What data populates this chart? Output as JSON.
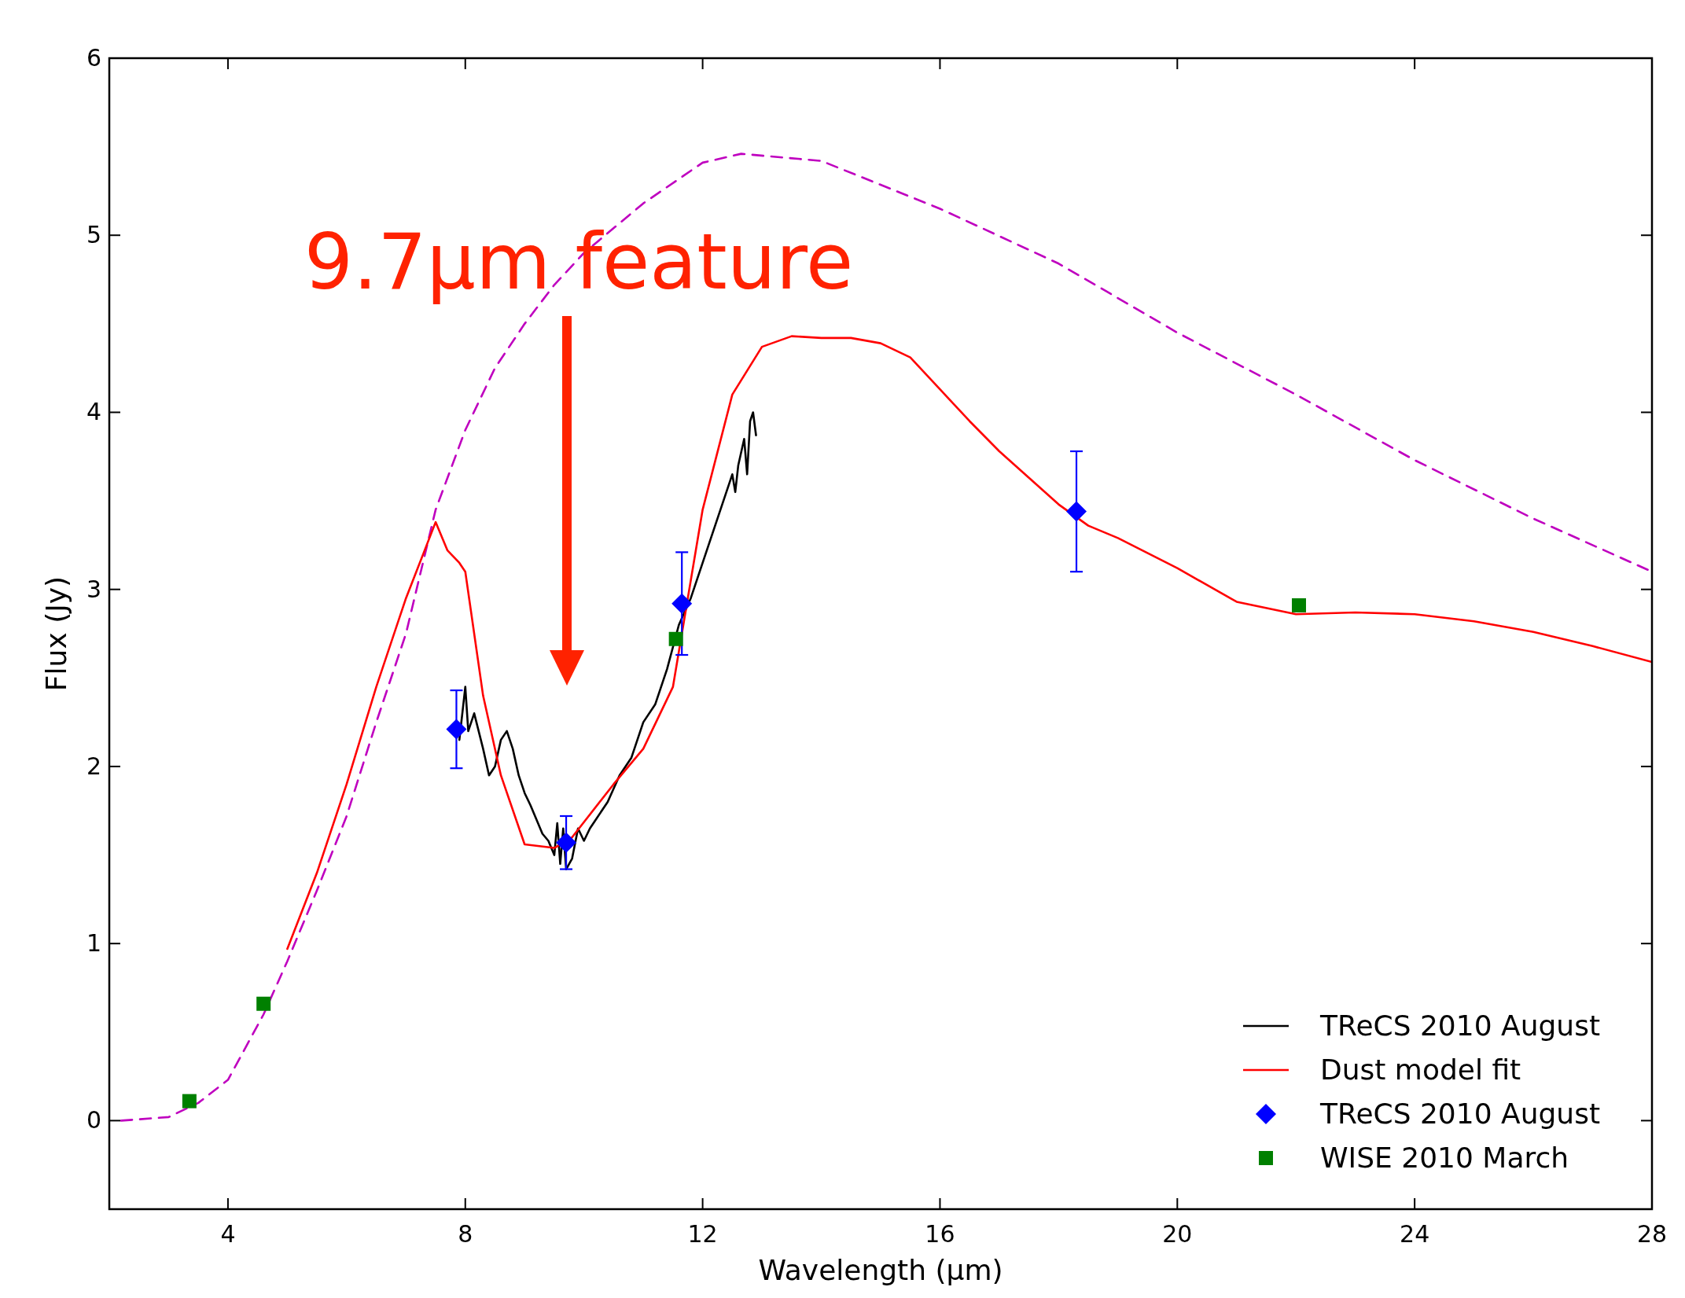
{
  "chart_data": {
    "type": "line",
    "xlabel": "Wavelength (μm)",
    "ylabel": "Flux (Jy)",
    "xlim": [
      2,
      28
    ],
    "ylim": [
      -0.5,
      6
    ],
    "xticks": [
      4,
      8,
      12,
      16,
      20,
      24,
      28
    ],
    "yticks": [
      0,
      1,
      2,
      3,
      4,
      5,
      6
    ],
    "grid": false,
    "legend": "bottom right",
    "annotations": [
      "9.7μm feature"
    ],
    "series": [
      {
        "type": "line",
        "line_style": "dashed",
        "marker": "none",
        "color": "#bf00bf",
        "x": [
          2.2,
          3,
          3.5,
          4,
          4.6,
          5,
          5.5,
          6,
          6.5,
          7,
          7.5,
          8,
          8.5,
          9,
          9.5,
          10,
          11,
          12,
          12.65,
          14,
          16,
          18,
          20,
          22,
          24,
          26,
          28
        ],
        "values": [
          0,
          0.02,
          0.1,
          0.23,
          0.6,
          0.9,
          1.3,
          1.72,
          2.25,
          2.75,
          3.45,
          3.9,
          4.25,
          4.5,
          4.72,
          4.9,
          5.18,
          5.41,
          5.46,
          5.42,
          5.15,
          4.84,
          4.45,
          4.1,
          3.73,
          3.4,
          3.1
        ]
      },
      {
        "type": "line",
        "name": "TReCS 2010 August",
        "line_style": "solid",
        "marker": "none",
        "color": "#000000",
        "x": [
          7.9,
          8.0,
          8.05,
          8.15,
          8.3,
          8.4,
          8.5,
          8.6,
          8.7,
          8.8,
          8.9,
          9.0,
          9.1,
          9.2,
          9.3,
          9.4,
          9.5,
          9.55,
          9.6,
          9.65,
          9.7,
          9.8,
          9.9,
          10.0,
          10.1,
          10.2,
          10.4,
          10.6,
          10.8,
          11.0,
          11.2,
          11.4,
          11.6,
          11.8,
          12.0,
          12.2,
          12.4,
          12.5,
          12.55,
          12.6,
          12.7,
          12.75,
          12.8,
          12.85,
          12.9
        ],
        "values": [
          2.15,
          2.45,
          2.2,
          2.3,
          2.1,
          1.95,
          2.0,
          2.15,
          2.2,
          2.1,
          1.95,
          1.85,
          1.78,
          1.7,
          1.62,
          1.58,
          1.5,
          1.68,
          1.45,
          1.65,
          1.42,
          1.48,
          1.65,
          1.58,
          1.65,
          1.7,
          1.8,
          1.95,
          2.05,
          2.25,
          2.35,
          2.55,
          2.8,
          2.95,
          3.15,
          3.35,
          3.55,
          3.65,
          3.55,
          3.7,
          3.85,
          3.65,
          3.95,
          4.0,
          3.87
        ]
      },
      {
        "type": "line",
        "name": "Dust model fit",
        "line_style": "solid",
        "marker": "none",
        "color": "#ff0000",
        "x": [
          5,
          5.5,
          6,
          6.5,
          7,
          7.5,
          7.7,
          7.9,
          8.0,
          8.3,
          8.6,
          9.0,
          9.5,
          9.8,
          10.5,
          11,
          11.5,
          12,
          12.5,
          13,
          13.5,
          14,
          14.5,
          15,
          15.5,
          16,
          16.5,
          17,
          17.5,
          18,
          18.5,
          19,
          20,
          21,
          22,
          23,
          24,
          25,
          26,
          27,
          28
        ],
        "values": [
          0.97,
          1.4,
          1.9,
          2.45,
          2.95,
          3.38,
          3.22,
          3.15,
          3.1,
          2.4,
          1.95,
          1.56,
          1.54,
          1.6,
          1.9,
          2.1,
          2.45,
          3.45,
          4.1,
          4.37,
          4.43,
          4.42,
          4.42,
          4.39,
          4.31,
          4.13,
          3.95,
          3.78,
          3.63,
          3.48,
          3.36,
          3.29,
          3.12,
          2.93,
          2.86,
          2.87,
          2.86,
          2.82,
          2.76,
          2.68,
          2.59
        ]
      },
      {
        "type": "scatter",
        "name": "TReCS 2010 August",
        "marker": "diamond",
        "color": "#0000ff",
        "x": [
          7.85,
          9.7,
          11.65,
          18.3
        ],
        "values": [
          2.21,
          1.57,
          2.92,
          3.44
        ],
        "errors": [
          0.22,
          0.15,
          0.29,
          0.34
        ]
      },
      {
        "type": "scatter",
        "name": "WISE 2010 March",
        "marker": "square",
        "color": "#008000",
        "x": [
          3.35,
          4.6,
          11.55,
          22.05
        ],
        "values": [
          0.11,
          0.66,
          2.72,
          2.91
        ]
      }
    ]
  }
}
